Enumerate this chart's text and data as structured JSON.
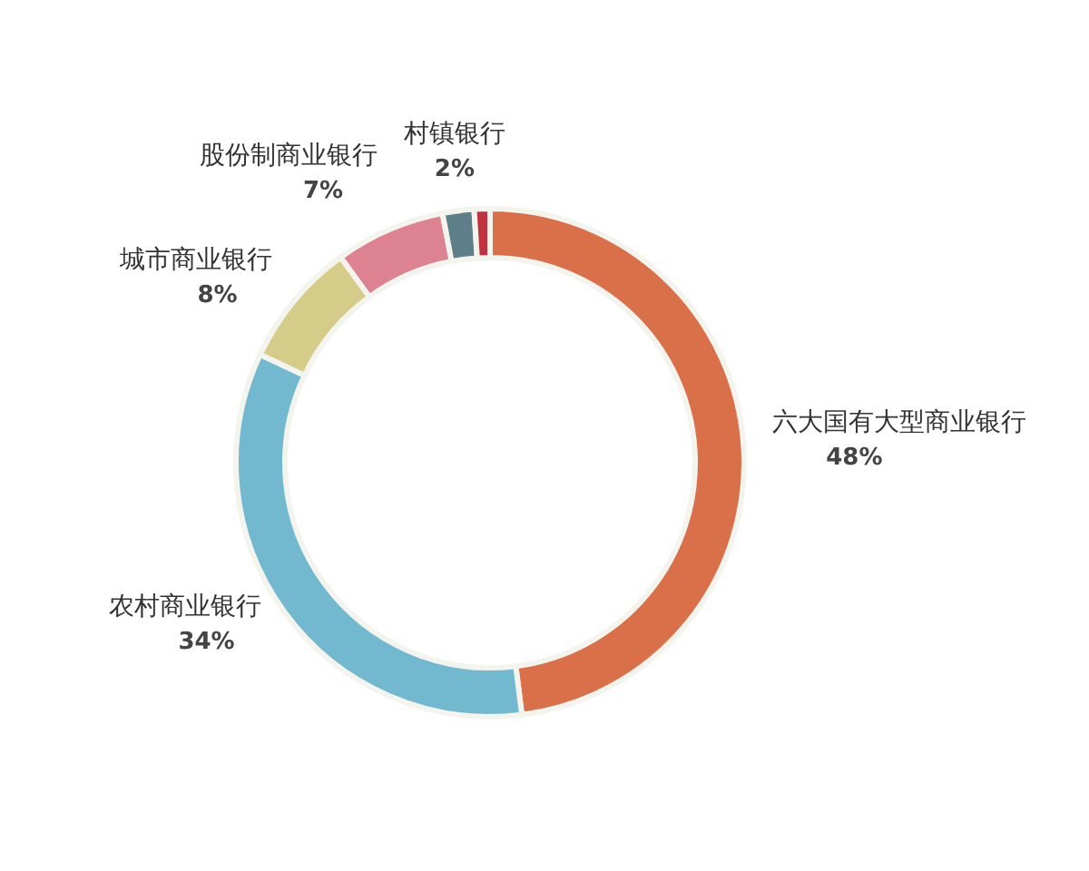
{
  "chart_data": {
    "type": "donut",
    "categories": [
      "六大国有大型商业银行",
      "农村商业银行",
      "城市商业银行",
      "股份制商业银行",
      "村镇银行",
      null
    ],
    "values": [
      48,
      34,
      8,
      7,
      2,
      1
    ],
    "colors": [
      "#d9704a",
      "#72b8cf",
      "#d6cc8a",
      "#dd8290",
      "#5e7f8a",
      "#c0323f"
    ],
    "value_labels": [
      "48%",
      "34%",
      "8%",
      "7%",
      "2%",
      null
    ]
  }
}
